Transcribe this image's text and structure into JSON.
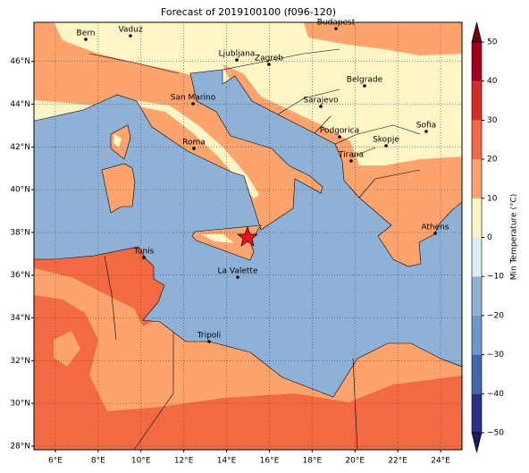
{
  "map": {
    "title": "Forecast of 2019100100 (f096-120)",
    "xlim": [
      5,
      25
    ],
    "ylim": [
      27.83,
      47.83
    ],
    "xticks": [
      {
        "value": 6,
        "label": "6°E"
      },
      {
        "value": 8,
        "label": "8°E"
      },
      {
        "value": 10,
        "label": "10°E"
      },
      {
        "value": 12,
        "label": "12°E"
      },
      {
        "value": 14,
        "label": "14°E"
      },
      {
        "value": 16,
        "label": "16°E"
      },
      {
        "value": 18,
        "label": "18°E"
      },
      {
        "value": 20,
        "label": "20°E"
      },
      {
        "value": 22,
        "label": "22°E"
      },
      {
        "value": 24,
        "label": "24°E"
      }
    ],
    "yticks": [
      {
        "value": 28,
        "label": "28°N"
      },
      {
        "value": 30,
        "label": "30°N"
      },
      {
        "value": 32,
        "label": "32°N"
      },
      {
        "value": 34,
        "label": "34°N"
      },
      {
        "value": 36,
        "label": "36°N"
      },
      {
        "value": 38,
        "label": "38°N"
      },
      {
        "value": 40,
        "label": "40°N"
      },
      {
        "value": 42,
        "label": "42°N"
      },
      {
        "value": 44,
        "label": "44°N"
      },
      {
        "value": 46,
        "label": "46°N"
      }
    ],
    "grid": true,
    "cities": [
      "Bern",
      "Vaduz",
      "Budapest",
      "Ljubljana",
      "Zagreb",
      "Belgrade",
      "San Marino",
      "Sarajevo",
      "Sofia",
      "Podgorica",
      "Skopje",
      "Roma",
      "Tirana",
      "Athens",
      "Tunis",
      "La Valette",
      "Tripoli"
    ],
    "colorbar": {
      "label": "Min Temperature (°C)",
      "ticks": [
        {
          "value": -50,
          "label": "−50"
        },
        {
          "value": -40,
          "label": "−40"
        },
        {
          "value": -30,
          "label": "−30"
        },
        {
          "value": -20,
          "label": "−20"
        },
        {
          "value": -10,
          "label": "−10"
        },
        0,
        10,
        20,
        30,
        40,
        50
      ],
      "colors": [
        "#2a2d8a",
        "#4168ae",
        "#6e98c8",
        "#8fb1d6",
        "#dcedf5",
        "#fdf5c6",
        "#fca36e",
        "#f26a43",
        "#d22d27",
        "#a3001f"
      ],
      "extend_colors": [
        "#1c1a5a",
        "#6e0018"
      ]
    }
  }
}
